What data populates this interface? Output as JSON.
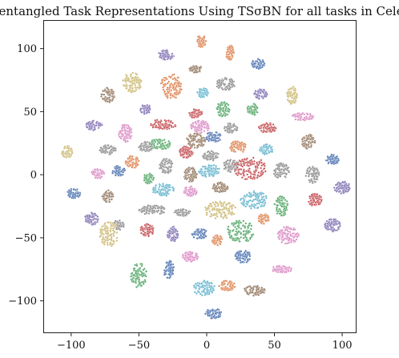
{
  "chart_data": {
    "type": "scatter",
    "title": "Disentangled Task Representations Using TSσBN for all tasks in CelebA",
    "xlabel": "",
    "ylabel": "",
    "xlim": [
      -120,
      110
    ],
    "ylim": [
      -125,
      122
    ],
    "xticks": [
      -100,
      -50,
      0,
      50,
      100
    ],
    "yticks": [
      -100,
      -50,
      0,
      50,
      100
    ],
    "xtick_labels": [
      "−100",
      "−50",
      "0",
      "50",
      "100"
    ],
    "ytick_labels": [
      "−100",
      "−50",
      "0",
      "50",
      "100"
    ],
    "grid": false,
    "legend": "none",
    "palette": [
      "#4c72b0",
      "#dd8452",
      "#55a868",
      "#c44e52",
      "#8172b3",
      "#937860",
      "#da8bc3",
      "#8c8c8c",
      "#ccb974",
      "#64b5cd"
    ],
    "clusters": [
      {
        "x": -4,
        "y": 106,
        "rx": 3.5,
        "ry": 5,
        "color": "#dd8452"
      },
      {
        "x": 17,
        "y": 97,
        "rx": 3,
        "ry": 6,
        "color": "#dd8452"
      },
      {
        "x": -30,
        "y": 95,
        "rx": 6,
        "ry": 4,
        "color": "#8172b3"
      },
      {
        "x": 38,
        "y": 88,
        "rx": 5,
        "ry": 4,
        "color": "#4c72b0"
      },
      {
        "x": -8,
        "y": 84,
        "rx": 5,
        "ry": 3,
        "color": "#937860"
      },
      {
        "x": -55,
        "y": 73,
        "rx": 7,
        "ry": 8,
        "color": "#ccb974"
      },
      {
        "x": -26,
        "y": 70,
        "rx": 8,
        "ry": 10,
        "color": "#dd8452"
      },
      {
        "x": 14,
        "y": 72,
        "rx": 7,
        "ry": 5,
        "color": "#8c8c8c"
      },
      {
        "x": -3,
        "y": 65,
        "rx": 4,
        "ry": 4,
        "color": "#64b5cd"
      },
      {
        "x": -73,
        "y": 63,
        "rx": 5,
        "ry": 6,
        "color": "#937860"
      },
      {
        "x": 40,
        "y": 64,
        "rx": 5,
        "ry": 4,
        "color": "#8172b3"
      },
      {
        "x": 63,
        "y": 63,
        "rx": 4,
        "ry": 7,
        "color": "#ccb974"
      },
      {
        "x": 12,
        "y": 52,
        "rx": 5,
        "ry": 6,
        "color": "#55a868"
      },
      {
        "x": -45,
        "y": 52,
        "rx": 4,
        "ry": 4,
        "color": "#8172b3"
      },
      {
        "x": 34,
        "y": 52,
        "rx": 4,
        "ry": 5,
        "color": "#55a868"
      },
      {
        "x": -8,
        "y": 48,
        "rx": 5,
        "ry": 4,
        "color": "#c44e52"
      },
      {
        "x": 71,
        "y": 46,
        "rx": 8,
        "ry": 3,
        "color": "#da8bc3"
      },
      {
        "x": -83,
        "y": 39,
        "rx": 6,
        "ry": 4,
        "color": "#8172b3"
      },
      {
        "x": -32,
        "y": 40,
        "rx": 10,
        "ry": 4,
        "color": "#c44e52"
      },
      {
        "x": -5,
        "y": 38,
        "rx": 7,
        "ry": 5,
        "color": "#da8bc3"
      },
      {
        "x": 18,
        "y": 37,
        "rx": 5,
        "ry": 4,
        "color": "#8c8c8c"
      },
      {
        "x": 45,
        "y": 37,
        "rx": 7,
        "ry": 4,
        "color": "#c44e52"
      },
      {
        "x": -60,
        "y": 33,
        "rx": 5,
        "ry": 7,
        "color": "#da8bc3"
      },
      {
        "x": -8,
        "y": 27,
        "rx": 7,
        "ry": 6,
        "color": "#937860"
      },
      {
        "x": 5,
        "y": 30,
        "rx": 6,
        "ry": 4,
        "color": "#4c72b0"
      },
      {
        "x": 75,
        "y": 26,
        "rx": 5,
        "ry": 6,
        "color": "#937860"
      },
      {
        "x": -35,
        "y": 24,
        "rx": 9,
        "ry": 4,
        "color": "#55a868"
      },
      {
        "x": 23,
        "y": 22,
        "rx": 6,
        "ry": 5,
        "color": "#dd8452"
      },
      {
        "x": -103,
        "y": 18,
        "rx": 4,
        "ry": 5,
        "color": "#ccb974"
      },
      {
        "x": -73,
        "y": 20,
        "rx": 6,
        "ry": 4,
        "color": "#8c8c8c"
      },
      {
        "x": -45,
        "y": 22,
        "rx": 5,
        "ry": 4,
        "color": "#8c8c8c"
      },
      {
        "x": -15,
        "y": 18,
        "rx": 5,
        "ry": 5,
        "color": "#c44e52"
      },
      {
        "x": 3,
        "y": 15,
        "rx": 6,
        "ry": 4,
        "color": "#8c8c8c"
      },
      {
        "x": 44,
        "y": 20,
        "rx": 5,
        "ry": 4,
        "color": "#64b5cd"
      },
      {
        "x": 93,
        "y": 12,
        "rx": 5,
        "ry": 4,
        "color": "#4c72b0"
      },
      {
        "x": -55,
        "y": 10,
        "rx": 5,
        "ry": 5,
        "color": "#dd8452"
      },
      {
        "x": -30,
        "y": 7,
        "rx": 5,
        "ry": 6,
        "color": "#8c8c8c"
      },
      {
        "x": 2,
        "y": 3,
        "rx": 8,
        "ry": 5,
        "color": "#64b5cd"
      },
      {
        "x": 18,
        "y": 7,
        "rx": 6,
        "ry": 5,
        "color": "#8c8c8c"
      },
      {
        "x": 32,
        "y": 5,
        "rx": 12,
        "ry": 9,
        "color": "#c44e52"
      },
      {
        "x": -80,
        "y": 1,
        "rx": 5,
        "ry": 4,
        "color": "#da8bc3"
      },
      {
        "x": -65,
        "y": 3,
        "rx": 5,
        "ry": 4,
        "color": "#4c72b0"
      },
      {
        "x": -43,
        "y": -3,
        "rx": 4,
        "ry": 4,
        "color": "#55a868"
      },
      {
        "x": -12,
        "y": 0,
        "rx": 5,
        "ry": 6,
        "color": "#937860"
      },
      {
        "x": 10,
        "y": -10,
        "rx": 6,
        "ry": 4,
        "color": "#937860"
      },
      {
        "x": 55,
        "y": 3,
        "rx": 6,
        "ry": 6,
        "color": "#8c8c8c"
      },
      {
        "x": 78,
        "y": 0,
        "rx": 5,
        "ry": 7,
        "color": "#8c8c8c"
      },
      {
        "x": -98,
        "y": -15,
        "rx": 5,
        "ry": 4,
        "color": "#4c72b0"
      },
      {
        "x": -73,
        "y": -17,
        "rx": 4,
        "ry": 5,
        "color": "#937860"
      },
      {
        "x": -32,
        "y": -12,
        "rx": 8,
        "ry": 5,
        "color": "#64b5cd"
      },
      {
        "x": -12,
        "y": -13,
        "rx": 5,
        "ry": 4,
        "color": "#da8bc3"
      },
      {
        "x": 35,
        "y": -20,
        "rx": 10,
        "ry": 7,
        "color": "#64b5cd"
      },
      {
        "x": 100,
        "y": -10,
        "rx": 6,
        "ry": 5,
        "color": "#8172b3"
      },
      {
        "x": -40,
        "y": -28,
        "rx": 10,
        "ry": 4,
        "color": "#8c8c8c"
      },
      {
        "x": -18,
        "y": -30,
        "rx": 6,
        "ry": 3,
        "color": "#8c8c8c"
      },
      {
        "x": 10,
        "y": -28,
        "rx": 12,
        "ry": 7,
        "color": "#ccb974"
      },
      {
        "x": 55,
        "y": -25,
        "rx": 5,
        "ry": 8,
        "color": "#55a868"
      },
      {
        "x": 80,
        "y": -20,
        "rx": 5,
        "ry": 5,
        "color": "#c44e52"
      },
      {
        "x": -85,
        "y": -35,
        "rx": 5,
        "ry": 5,
        "color": "#8172b3"
      },
      {
        "x": -65,
        "y": -40,
        "rx": 4,
        "ry": 4,
        "color": "#8c8c8c"
      },
      {
        "x": -44,
        "y": -44,
        "rx": 5,
        "ry": 5,
        "color": "#c44e52"
      },
      {
        "x": -25,
        "y": -47,
        "rx": 4,
        "ry": 6,
        "color": "#8172b3"
      },
      {
        "x": -5,
        "y": -47,
        "rx": 6,
        "ry": 4,
        "color": "#4c72b0"
      },
      {
        "x": 25,
        "y": -45,
        "rx": 10,
        "ry": 9,
        "color": "#55a868"
      },
      {
        "x": 42,
        "y": -35,
        "rx": 4,
        "ry": 4,
        "color": "#dd8452"
      },
      {
        "x": 60,
        "y": -48,
        "rx": 8,
        "ry": 7,
        "color": "#da8bc3"
      },
      {
        "x": 93,
        "y": -40,
        "rx": 6,
        "ry": 5,
        "color": "#8172b3"
      },
      {
        "x": -72,
        "y": -47,
        "rx": 7,
        "ry": 10,
        "color": "#ccb974"
      },
      {
        "x": 8,
        "y": -52,
        "rx": 4,
        "ry": 4,
        "color": "#dd8452"
      },
      {
        "x": -12,
        "y": -65,
        "rx": 6,
        "ry": 4,
        "color": "#da8bc3"
      },
      {
        "x": 27,
        "y": -65,
        "rx": 6,
        "ry": 5,
        "color": "#4c72b0"
      },
      {
        "x": -50,
        "y": -80,
        "rx": 6,
        "ry": 10,
        "color": "#55a868"
      },
      {
        "x": -28,
        "y": -75,
        "rx": 4,
        "ry": 7,
        "color": "#4c72b0"
      },
      {
        "x": 55,
        "y": -75,
        "rx": 8,
        "ry": 3,
        "color": "#da8bc3"
      },
      {
        "x": -2,
        "y": -90,
        "rx": 8,
        "ry": 6,
        "color": "#64b5cd"
      },
      {
        "x": 15,
        "y": -88,
        "rx": 6,
        "ry": 4,
        "color": "#dd8452"
      },
      {
        "x": 35,
        "y": -92,
        "rx": 8,
        "ry": 4,
        "color": "#937860"
      },
      {
        "x": 5,
        "y": -110,
        "rx": 6,
        "ry": 4,
        "color": "#4c72b0"
      }
    ]
  }
}
